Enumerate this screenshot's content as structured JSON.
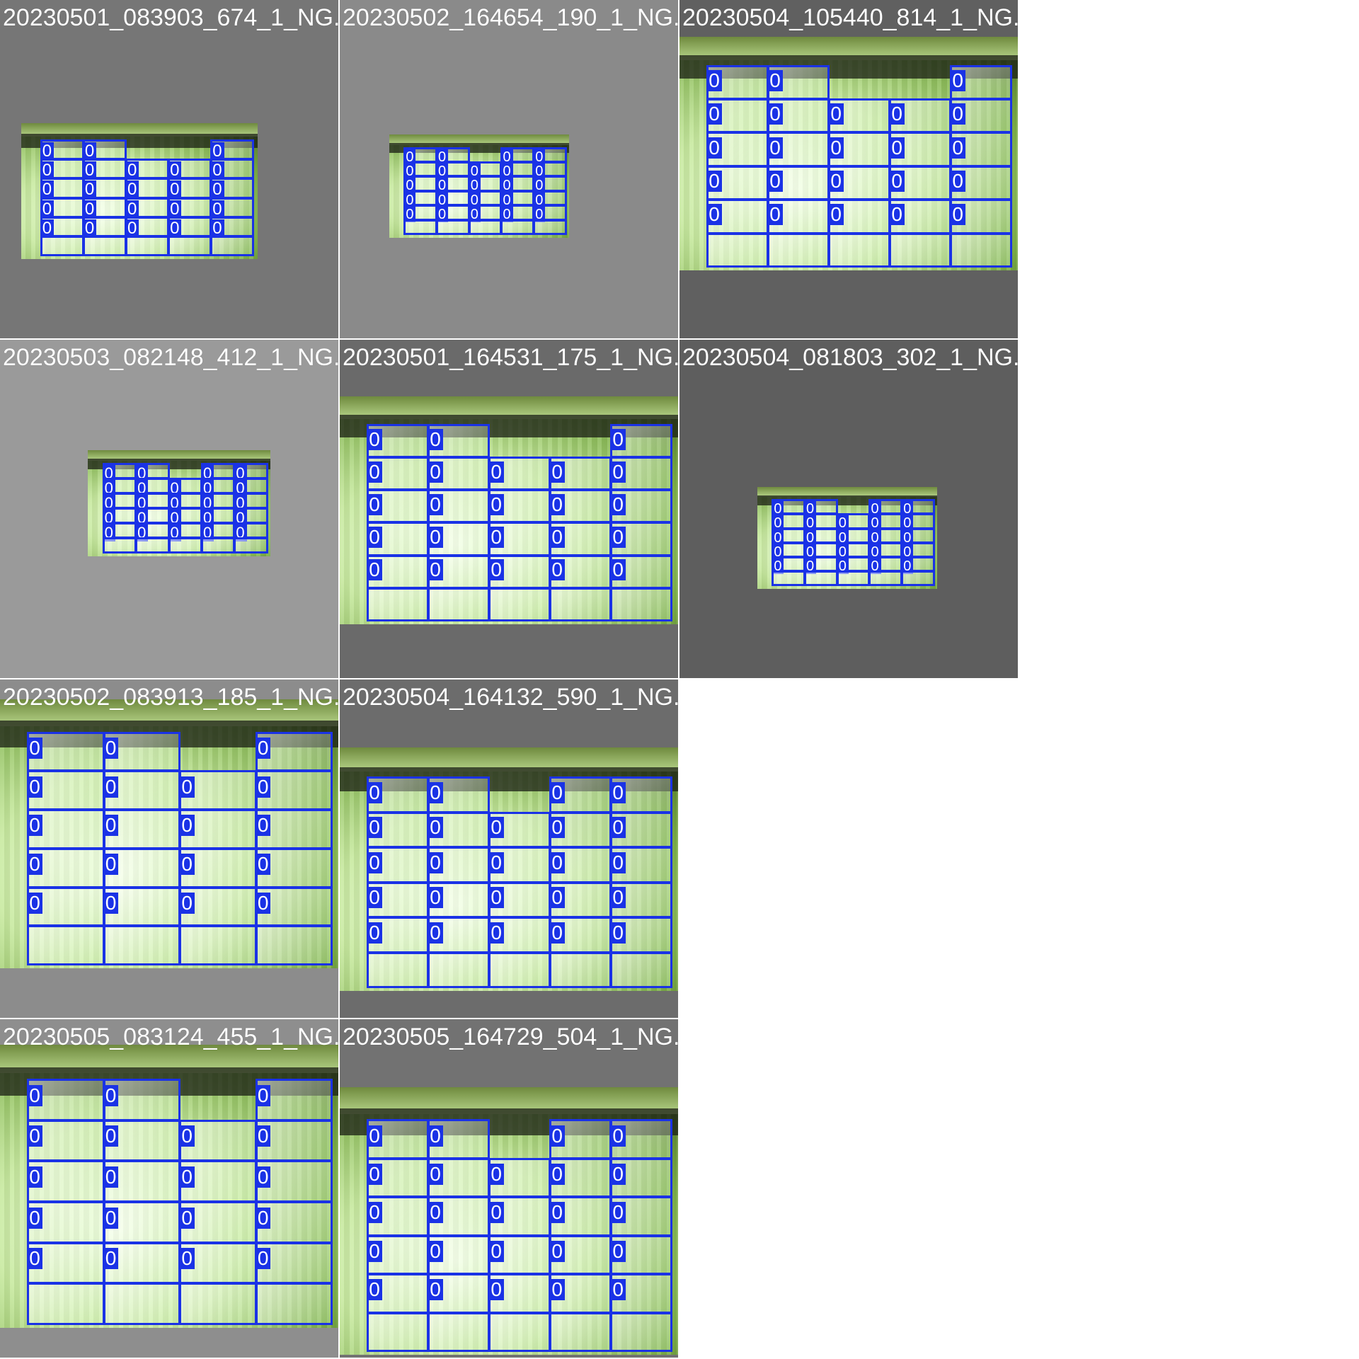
{
  "mosaic": {
    "background": "#ffffff",
    "box_color": "#1a32e6",
    "tiles": [
      {
        "filename": "20230501_083903_674_1_NG.jpg",
        "class_label": "0",
        "bg": "#767676"
      },
      {
        "filename": "20230502_164654_190_1_NG.jpg",
        "class_label": "0",
        "bg": "#8a8a8a"
      },
      {
        "filename": "20230504_105440_814_1_NG.jpg",
        "class_label": "0",
        "bg": "#606060"
      },
      {
        "filename": "20230503_082148_412_1_NG.jpg",
        "class_label": "0",
        "bg": "#9a9a9a"
      },
      {
        "filename": "20230501_164531_175_1_NG.jpg",
        "class_label": "0",
        "bg": "#6a6a6a"
      },
      {
        "filename": "20230504_081803_302_1_NG.jpg",
        "class_label": "0",
        "bg": "#5e5e5e"
      },
      {
        "filename": "20230502_083913_185_1_NG.jpg",
        "class_label": "0",
        "bg": "#8c8c8c"
      },
      {
        "filename": "20230504_164132_590_1_NG.jpg",
        "class_label": "0",
        "bg": "#6c6c6c"
      },
      {
        "filename": "20230505_083124_455_1_NG.jpg",
        "class_label": "0",
        "bg": "#8e8e8e"
      },
      {
        "filename": "20230505_164729_504_1_NG.jpg",
        "class_label": "0",
        "bg": "#727272"
      }
    ]
  }
}
